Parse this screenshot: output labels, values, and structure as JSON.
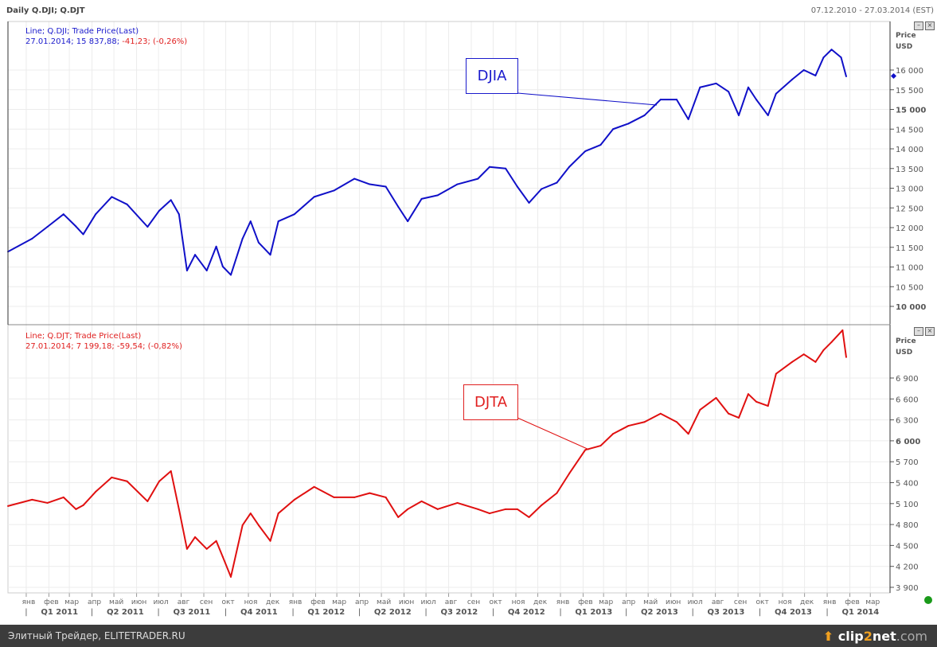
{
  "header": {
    "title": "Daily Q.DJI; Q.DJT",
    "range": "07.12.2010 - 27.03.2014 (EST)"
  },
  "colors": {
    "djia": "#1010c8",
    "djta": "#e01010",
    "grid": "#ececec",
    "footer": "#3c3c3c"
  },
  "top_legend": {
    "line1": "Line; Q.DJI; Trade Price(Last)",
    "line2_a": "27.01.2014; 15 837,88; ",
    "line2_b": "-41,23; (-0,26%)"
  },
  "bottom_legend": {
    "line1": "Line; Q.DJT; Trade Price(Last)",
    "line2": "27.01.2014; 7 199,18; -59,54; (-0,82%)"
  },
  "footer": {
    "text": "Элитный Трейдер, ELITETRADER.RU",
    "logo_a": "clip",
    "logo_b": "2",
    "logo_c": "net",
    "logo_d": ".com"
  },
  "chart_data": [
    {
      "type": "line",
      "name": "DJIA",
      "annotation": "DJIA",
      "ylabel": "Price\nUSD",
      "ylabel_1": "Price",
      "ylabel_2": "USD",
      "ylim": [
        9700,
        16700
      ],
      "yticks": [
        10000,
        10500,
        11000,
        11500,
        12000,
        12500,
        13000,
        13500,
        14000,
        14500,
        15000,
        15500,
        16000
      ],
      "ytick_labels": [
        "10 000",
        "10 500",
        "11 000",
        "11 500",
        "12 000",
        "12 500",
        "13 000",
        "13 500",
        "14 000",
        "14 500",
        "15 000",
        "15 500",
        "16 000"
      ],
      "points": [
        [
          "2010-12-07",
          11390
        ],
        [
          "2011-01-09",
          11720
        ],
        [
          "2011-01-30",
          12020
        ],
        [
          "2011-02-21",
          12340
        ],
        [
          "2011-03-10",
          12030
        ],
        [
          "2011-03-20",
          11830
        ],
        [
          "2011-04-06",
          12340
        ],
        [
          "2011-04-28",
          12780
        ],
        [
          "2011-05-19",
          12590
        ],
        [
          "2011-06-16",
          12020
        ],
        [
          "2011-07-02",
          12430
        ],
        [
          "2011-07-18",
          12700
        ],
        [
          "2011-07-29",
          12340
        ],
        [
          "2011-08-09",
          10910
        ],
        [
          "2011-08-20",
          11310
        ],
        [
          "2011-09-05",
          10910
        ],
        [
          "2011-09-18",
          11520
        ],
        [
          "2011-09-27",
          11010
        ],
        [
          "2011-10-08",
          10800
        ],
        [
          "2011-10-24",
          11720
        ],
        [
          "2011-11-04",
          12160
        ],
        [
          "2011-11-15",
          11620
        ],
        [
          "2011-12-01",
          11310
        ],
        [
          "2011-12-12",
          12160
        ],
        [
          "2012-01-03",
          12340
        ],
        [
          "2012-01-30",
          12780
        ],
        [
          "2012-02-26",
          12940
        ],
        [
          "2012-03-25",
          13240
        ],
        [
          "2012-04-15",
          13100
        ],
        [
          "2012-05-07",
          13040
        ],
        [
          "2012-05-24",
          12530
        ],
        [
          "2012-06-06",
          12160
        ],
        [
          "2012-06-25",
          12730
        ],
        [
          "2012-07-17",
          12820
        ],
        [
          "2012-08-13",
          13100
        ],
        [
          "2012-09-10",
          13240
        ],
        [
          "2012-09-26",
          13540
        ],
        [
          "2012-10-18",
          13500
        ],
        [
          "2012-11-03",
          13040
        ],
        [
          "2012-11-19",
          12630
        ],
        [
          "2012-12-06",
          12980
        ],
        [
          "2012-12-27",
          13140
        ],
        [
          "2013-01-13",
          13540
        ],
        [
          "2013-02-04",
          13940
        ],
        [
          "2013-02-25",
          14100
        ],
        [
          "2013-03-14",
          14500
        ],
        [
          "2013-04-04",
          14640
        ],
        [
          "2013-04-26",
          14850
        ],
        [
          "2013-05-18",
          15250
        ],
        [
          "2013-06-09",
          15250
        ],
        [
          "2013-06-25",
          14750
        ],
        [
          "2013-07-11",
          15560
        ],
        [
          "2013-08-02",
          15660
        ],
        [
          "2013-08-19",
          15450
        ],
        [
          "2013-09-02",
          14850
        ],
        [
          "2013-09-15",
          15560
        ],
        [
          "2013-09-26",
          15250
        ],
        [
          "2013-10-12",
          14850
        ],
        [
          "2013-10-23",
          15400
        ],
        [
          "2013-11-14",
          15760
        ],
        [
          "2013-11-30",
          16000
        ],
        [
          "2013-12-16",
          15860
        ],
        [
          "2013-12-27",
          16320
        ],
        [
          "2014-01-07",
          16520
        ],
        [
          "2014-01-20",
          16320
        ],
        [
          "2014-01-27",
          15838
        ]
      ]
    },
    {
      "type": "line",
      "name": "DJTA",
      "annotation": "DJTA",
      "ylabel_1": "Price",
      "ylabel_2": "USD",
      "ylim": [
        3870,
        7650
      ],
      "yticks": [
        3900,
        4200,
        4500,
        4800,
        5100,
        5400,
        5700,
        6000,
        6300,
        6600,
        6900
      ],
      "ytick_labels": [
        "3 900",
        "4 200",
        "4 500",
        "4 800",
        "5 100",
        "5 400",
        "5 700",
        "6 000",
        "6 300",
        "6 600",
        "6 900"
      ],
      "points": [
        [
          "2010-12-07",
          5065
        ],
        [
          "2011-01-09",
          5156
        ],
        [
          "2011-01-30",
          5110
        ],
        [
          "2011-02-21",
          5190
        ],
        [
          "2011-03-10",
          5020
        ],
        [
          "2011-03-20",
          5076
        ],
        [
          "2011-04-06",
          5270
        ],
        [
          "2011-04-28",
          5475
        ],
        [
          "2011-05-19",
          5420
        ],
        [
          "2011-06-16",
          5133
        ],
        [
          "2011-07-02",
          5420
        ],
        [
          "2011-07-18",
          5566
        ],
        [
          "2011-07-29",
          5020
        ],
        [
          "2011-08-09",
          4450
        ],
        [
          "2011-08-20",
          4620
        ],
        [
          "2011-09-05",
          4450
        ],
        [
          "2011-09-18",
          4565
        ],
        [
          "2011-09-27",
          4335
        ],
        [
          "2011-10-08",
          4050
        ],
        [
          "2011-10-24",
          4790
        ],
        [
          "2011-11-04",
          4960
        ],
        [
          "2011-11-15",
          4790
        ],
        [
          "2011-12-01",
          4565
        ],
        [
          "2011-12-12",
          4960
        ],
        [
          "2012-01-03",
          5156
        ],
        [
          "2012-01-30",
          5340
        ],
        [
          "2012-02-26",
          5190
        ],
        [
          "2012-03-25",
          5190
        ],
        [
          "2012-04-15",
          5250
        ],
        [
          "2012-05-07",
          5190
        ],
        [
          "2012-05-24",
          4905
        ],
        [
          "2012-06-06",
          5020
        ],
        [
          "2012-06-25",
          5133
        ],
        [
          "2012-07-17",
          5020
        ],
        [
          "2012-08-13",
          5110
        ],
        [
          "2012-09-10",
          5020
        ],
        [
          "2012-09-26",
          4960
        ],
        [
          "2012-10-18",
          5020
        ],
        [
          "2012-11-03",
          5020
        ],
        [
          "2012-11-19",
          4905
        ],
        [
          "2012-12-06",
          5076
        ],
        [
          "2012-12-27",
          5250
        ],
        [
          "2013-01-13",
          5530
        ],
        [
          "2013-02-04",
          5870
        ],
        [
          "2013-02-25",
          5930
        ],
        [
          "2013-03-14",
          6100
        ],
        [
          "2013-04-04",
          6215
        ],
        [
          "2013-04-26",
          6270
        ],
        [
          "2013-05-18",
          6390
        ],
        [
          "2013-06-09",
          6270
        ],
        [
          "2013-06-25",
          6100
        ],
        [
          "2013-07-11",
          6445
        ],
        [
          "2013-08-02",
          6615
        ],
        [
          "2013-08-19",
          6390
        ],
        [
          "2013-09-02",
          6330
        ],
        [
          "2013-09-15",
          6670
        ],
        [
          "2013-09-26",
          6560
        ],
        [
          "2013-10-12",
          6500
        ],
        [
          "2013-10-23",
          6960
        ],
        [
          "2013-11-14",
          7130
        ],
        [
          "2013-11-30",
          7240
        ],
        [
          "2013-12-16",
          7130
        ],
        [
          "2013-12-27",
          7300
        ],
        [
          "2014-01-07",
          7415
        ],
        [
          "2014-01-22",
          7585
        ],
        [
          "2014-01-27",
          7199
        ]
      ]
    }
  ],
  "x_axis": {
    "months": [
      "янв",
      "фев",
      "мар",
      "апр",
      "май",
      "июн",
      "июл",
      "авг",
      "сен",
      "окт",
      "ноя",
      "дек"
    ],
    "month_range": {
      "start": "2011-01",
      "end": "2014-03"
    },
    "quarters": [
      "Q1 2011",
      "Q2 2011",
      "Q3 2011",
      "Q4 2011",
      "Q1 2012",
      "Q2 2012",
      "Q3 2012",
      "Q4 2012",
      "Q1 2013",
      "Q2 2013",
      "Q3 2013",
      "Q4 2013",
      "Q1 2014"
    ]
  }
}
